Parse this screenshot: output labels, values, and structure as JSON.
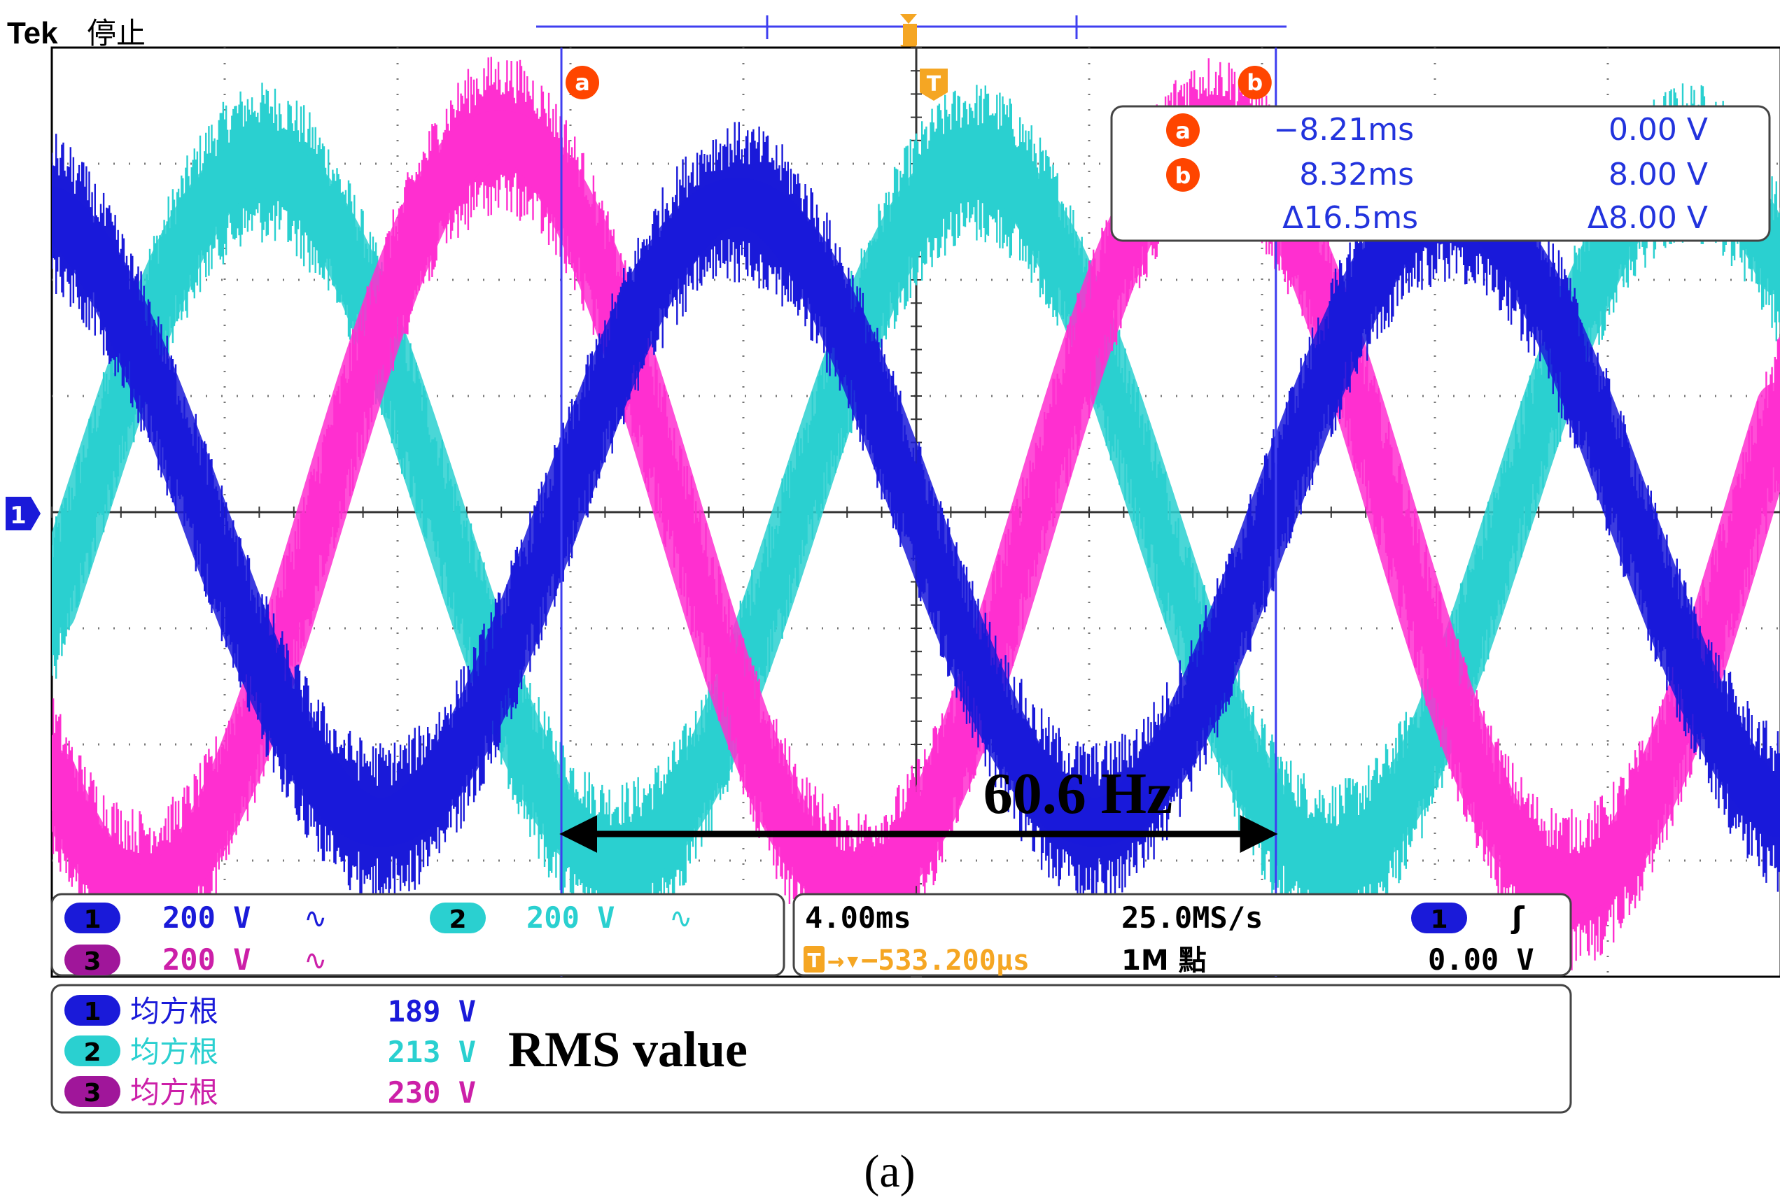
{
  "header": {
    "brand": "Tek",
    "status": "停止"
  },
  "markers": {
    "trigger_label": "T",
    "cursor_a_label": "a",
    "cursor_b_label": "b"
  },
  "cursor_readout": {
    "a": {
      "label": "a",
      "time": "−8.21ms",
      "volt": "0.00 V"
    },
    "b": {
      "label": "b",
      "time": "8.32ms",
      "volt": "8.00 V"
    },
    "delta": {
      "time": "Δ16.5ms",
      "volt": "Δ8.00 V"
    }
  },
  "channel_marker": {
    "label": "1"
  },
  "channels": [
    {
      "num": "1",
      "scale": "200 V",
      "coupling": "∿",
      "color": "#1a1ad9"
    },
    {
      "num": "2",
      "scale": "200 V",
      "coupling": "∿",
      "color": "#2ad0d0"
    },
    {
      "num": "3",
      "scale": "200 V",
      "coupling": "∿",
      "color": "#cc1fa8"
    }
  ],
  "timebase": {
    "time_div": "4.00ms",
    "sample_rate": "25.0MS/s",
    "trigger_channel": "1",
    "trigger_slope": "ʃ",
    "trigger_offset_icon": "T",
    "trigger_offset": "→▾−533.200μs",
    "record_length": "1M 點",
    "trigger_level": "0.00 V"
  },
  "measurements": [
    {
      "num": "1",
      "label": "均方根",
      "value": "189 V"
    },
    {
      "num": "2",
      "label": "均方根",
      "value": "213 V"
    },
    {
      "num": "3",
      "label": "均方根",
      "value": "230 V"
    }
  ],
  "annotations": {
    "frequency": "60.6 Hz",
    "rms": "RMS value",
    "caption": "(a)"
  },
  "colors": {
    "ch1": "#1a1ad9",
    "ch2": "#2ad0d0",
    "ch3": "#ff2fd0",
    "ch3_badge": "#a0169a",
    "cursor": "#3f3ff0",
    "trigger": "#f5a623",
    "marker_red": "#ff4500",
    "readout_blue": "#2233dd"
  },
  "chart_data": {
    "type": "line",
    "x_unit": "ms",
    "xlim": [
      -20,
      20
    ],
    "ylim": [
      -400,
      400
    ],
    "divisions": {
      "x": 10,
      "y": 8
    },
    "cursor_a_ms": -8.21,
    "cursor_b_ms": 8.32,
    "series": [
      {
        "name": "1",
        "amplitude_v": 267,
        "phase_deg": 180,
        "frequency_hz": 60.6,
        "rms_v": 189
      },
      {
        "name": "2",
        "amplitude_v": 301,
        "phase_deg": 60,
        "frequency_hz": 60.6,
        "rms_v": 213
      },
      {
        "name": "3",
        "amplitude_v": 325,
        "phase_deg": 300,
        "frequency_hz": 60.6,
        "rms_v": 230
      }
    ]
  }
}
